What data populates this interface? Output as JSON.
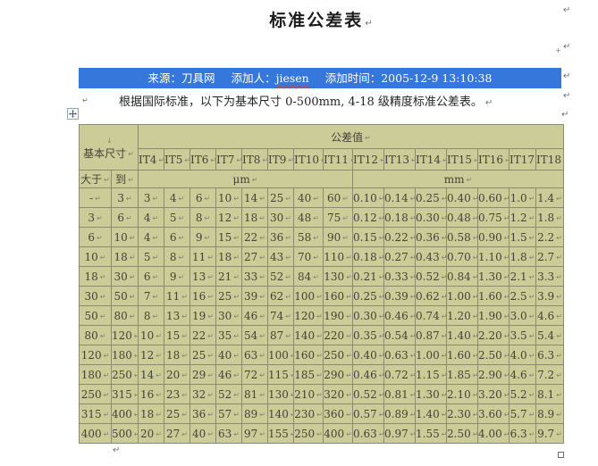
{
  "page": {
    "title": "标准公差表",
    "intro": "根据国际标准，以下为基本尺寸 0-500mm, 4-18 级精度标准公差表。",
    "marks": {
      "pilcrow": "↵",
      "line_break": "↓",
      "cell_mark": "↵",
      "plus": "+"
    }
  },
  "meta_bar": {
    "source": "来源：刀具网",
    "author_label": "添加人：",
    "author_name": "jiesen",
    "time": "添加时间：2005-12-9  13:10:38",
    "bg_color": "#3577DA",
    "text_color": "#FFFFFF",
    "spellcheck_underline_color": "#E23B2E"
  },
  "table": {
    "corner_header": "基本尺寸",
    "group_header": "公差值",
    "col_headers": [
      "IT4",
      "IT5",
      "IT6",
      "IT7",
      "IT8",
      "IT9",
      "IT10",
      "IT11",
      "IT12",
      "IT13",
      "IT14",
      "IT15",
      "IT16",
      "IT17",
      "IT18"
    ],
    "row_headers": [
      "大于",
      "到"
    ],
    "unit_um": "μm",
    "unit_mm": "mm",
    "rows": [
      [
        "-",
        "3",
        "3",
        "4",
        "6",
        "10",
        "14",
        "25",
        "40",
        "60",
        "0.10",
        "0.14",
        "0.25",
        "0.40",
        "0.60",
        "1.0",
        "1.4"
      ],
      [
        "3",
        "6",
        "4",
        "5",
        "8",
        "12",
        "18",
        "30",
        "48",
        "75",
        "0.12",
        "0.18",
        "0.30",
        "0.48",
        "0.75",
        "1.2",
        "1.8"
      ],
      [
        "6",
        "10",
        "4",
        "6",
        "9",
        "15",
        "22",
        "36",
        "58",
        "90",
        "0.15",
        "0.22",
        "0.36",
        "0.58",
        "0.90",
        "1.5",
        "2.2"
      ],
      [
        "10",
        "18",
        "5",
        "8",
        "11",
        "18",
        "27",
        "43",
        "70",
        "110",
        "0.18",
        "0.27",
        "0.43",
        "0.70",
        "1.10",
        "1.8",
        "2.7"
      ],
      [
        "18",
        "30",
        "6",
        "9",
        "13",
        "21",
        "33",
        "52",
        "84",
        "130",
        "0.21",
        "0.33",
        "0.52",
        "0.84",
        "1.30",
        "2.1",
        "3.3"
      ],
      [
        "30",
        "50",
        "7",
        "11",
        "16",
        "25",
        "39",
        "62",
        "100",
        "160",
        "0.25",
        "0.39",
        "0.62",
        "1.00",
        "1.60",
        "2.5",
        "3.9"
      ],
      [
        "50",
        "80",
        "8",
        "13",
        "19",
        "30",
        "46",
        "74",
        "120",
        "190",
        "0.30",
        "0.46",
        "0.74",
        "1.20",
        "1.90",
        "3.0",
        "4.6"
      ],
      [
        "80",
        "120",
        "10",
        "15",
        "22",
        "35",
        "54",
        "87",
        "140",
        "220",
        "0.35",
        "0.54",
        "0.87",
        "1.40",
        "2.20",
        "3.5",
        "5.4"
      ],
      [
        "120",
        "180",
        "12",
        "18",
        "25",
        "40",
        "63",
        "100",
        "160",
        "250",
        "0.40",
        "0.63",
        "1.00",
        "1.60",
        "2.50",
        "4.0",
        "6.3"
      ],
      [
        "180",
        "250",
        "14",
        "20",
        "29",
        "46",
        "72",
        "115",
        "185",
        "290",
        "0.46",
        "0.72",
        "1.15",
        "1.85",
        "2.90",
        "4.6",
        "7.2"
      ],
      [
        "250",
        "315",
        "16",
        "23",
        "32",
        "52",
        "81",
        "130",
        "210",
        "320",
        "0.52",
        "0.81",
        "1.30",
        "2.10",
        "3.20",
        "5.2",
        "8.1"
      ],
      [
        "315",
        "400",
        "18",
        "25",
        "36",
        "57",
        "89",
        "140",
        "230",
        "360",
        "0.57",
        "0.89",
        "1.40",
        "2.30",
        "3.60",
        "5.7",
        "8.9"
      ],
      [
        "400",
        "500",
        "20",
        "27",
        "40",
        "63",
        "97",
        "155",
        "250",
        "400",
        "0.63",
        "0.97",
        "1.55",
        "2.50",
        "4.00",
        "6.3",
        "9.7"
      ]
    ],
    "bg_color": "#CCCC99",
    "border_color": "#8B8B74"
  }
}
